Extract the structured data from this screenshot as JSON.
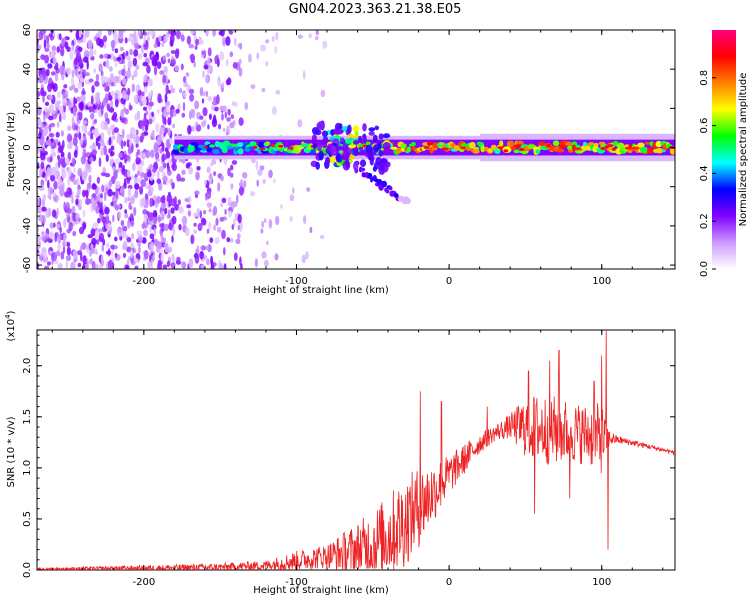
{
  "title": "GN04.2023.363.21.38.E05",
  "chart_data": [
    {
      "type": "heatmap",
      "xlabel": "Height of straight line (km)",
      "ylabel": "Frequency (Hz)",
      "xlim": [
        -270,
        148
      ],
      "ylim": [
        -62,
        60
      ],
      "xticks": [
        -200,
        -100,
        0,
        100
      ],
      "yticks": [
        -60,
        -40,
        -20,
        0,
        20,
        40,
        60
      ],
      "colorbar": {
        "label": "Normalized spectral amplitude",
        "range": [
          0,
          1
        ],
        "ticks": [
          0.0,
          0.2,
          0.4,
          0.6,
          0.8
        ],
        "colors": [
          "#ffffff",
          "#cc99ff",
          "#8000ff",
          "#0000ff",
          "#00ffff",
          "#00ff00",
          "#ffff00",
          "#ff7f00",
          "#ff0000",
          "#ff0080"
        ]
      },
      "features": {
        "noise_region_x": [
          -270,
          -110
        ],
        "band_x": [
          -180,
          148
        ],
        "band_center_hz": 0,
        "band_halfwidth_hz": 4,
        "burst_x": [
          -80,
          -60
        ],
        "burst_halfwidth_hz": 12,
        "tail_from": {
          "x": -58,
          "f": -12
        },
        "tail_to": {
          "x": -27,
          "f": -28
        }
      }
    },
    {
      "type": "line",
      "xlabel": "Height of straight line (km)",
      "ylabel": "SNR (10 * v/v)",
      "multiplier": "(x10^4)",
      "xlim": [
        -270,
        148
      ],
      "ylim": [
        0,
        2.35
      ],
      "xticks": [
        -200,
        -100,
        0,
        100
      ],
      "yticks": [
        0.0,
        0.5,
        1.0,
        1.5,
        2.0
      ],
      "ytick_labels": [
        "0.0",
        "0.5",
        "1.0",
        "1.5",
        "2.0"
      ],
      "color": "#ee2222",
      "envelope": {
        "x": [
          -270,
          -150,
          -120,
          -100,
          -80,
          -60,
          -50,
          -40,
          -30,
          -20,
          -10,
          0,
          10,
          20,
          30,
          40,
          50,
          60,
          70,
          80,
          90,
          100,
          105,
          110,
          120,
          148
        ],
        "base": [
          0.01,
          0.03,
          0.05,
          0.1,
          0.15,
          0.22,
          0.28,
          0.38,
          0.5,
          0.65,
          0.8,
          0.95,
          1.1,
          1.25,
          1.35,
          1.42,
          1.43,
          1.42,
          1.4,
          1.38,
          1.36,
          1.32,
          1.3,
          1.28,
          1.25,
          1.15
        ],
        "amp": [
          0.01,
          0.04,
          0.05,
          0.1,
          0.12,
          0.28,
          0.35,
          0.4,
          0.45,
          0.4,
          0.3,
          0.2,
          0.15,
          0.1,
          0.08,
          0.12,
          0.3,
          0.35,
          0.35,
          0.3,
          0.3,
          0.35,
          0.08,
          0.04,
          0.03,
          0.02
        ]
      },
      "spikes": [
        {
          "x": -19,
          "y": 1.75
        },
        {
          "x": -5,
          "y": 1.65
        },
        {
          "x": 25,
          "y": 1.6
        },
        {
          "x": 52,
          "y": 1.95
        },
        {
          "x": 56,
          "y": 0.55
        },
        {
          "x": 66,
          "y": 2.05
        },
        {
          "x": 72,
          "y": 2.15
        },
        {
          "x": 79,
          "y": 0.7
        },
        {
          "x": 95,
          "y": 1.85
        },
        {
          "x": 100,
          "y": 2.1
        },
        {
          "x": 103,
          "y": 2.35
        },
        {
          "x": 104,
          "y": 0.2
        }
      ]
    }
  ]
}
